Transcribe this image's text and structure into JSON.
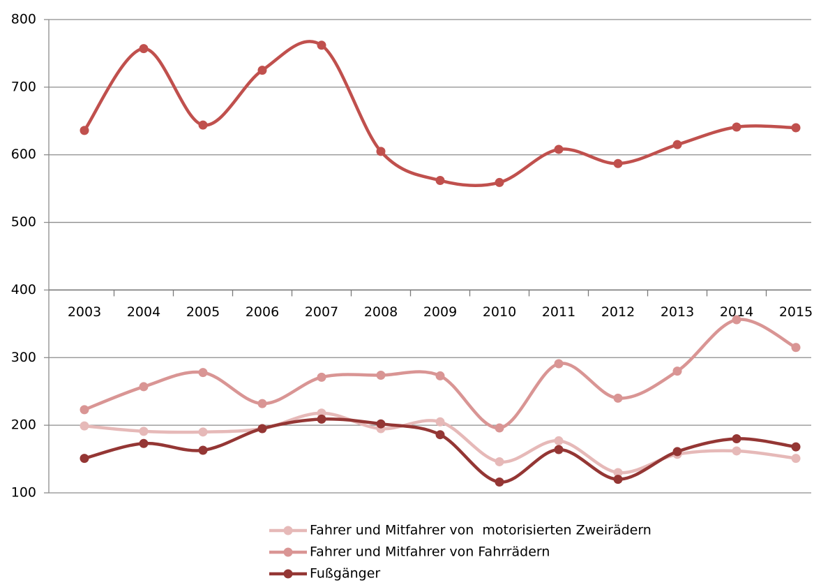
{
  "chart_data": {
    "type": "line",
    "categories": [
      "2003",
      "2004",
      "2005",
      "2006",
      "2007",
      "2008",
      "2009",
      "2010",
      "2011",
      "2012",
      "2013",
      "2014",
      "2015"
    ],
    "series": [
      {
        "color": "#c0504d",
        "values": [
          636,
          757,
          644,
          725,
          762,
          605,
          562,
          559,
          608,
          587,
          615,
          641,
          640
        ]
      },
      {
        "name": "Fahrer und Mitfahrer von  motorisierten Zweirädern",
        "color": "#e6b9b8",
        "values": [
          199,
          191,
          190,
          195,
          218,
          195,
          205,
          146,
          177,
          130,
          157,
          162,
          151
        ]
      },
      {
        "name": "Fahrer und Mitfahrer von Fahrrädern",
        "color": "#d99594",
        "values": [
          223,
          257,
          278,
          232,
          271,
          274,
          273,
          196,
          291,
          240,
          280,
          356,
          315
        ]
      },
      {
        "name": "Fußgänger",
        "color": "#943634",
        "values": [
          151,
          173,
          163,
          195,
          209,
          202,
          186,
          116,
          164,
          120,
          161,
          180,
          168
        ]
      }
    ],
    "ylim": [
      100,
      800
    ],
    "yticks": [
      100,
      200,
      300,
      400,
      500,
      600,
      700,
      800
    ],
    "x_axis_crosses": 400,
    "grid": true,
    "smooth": true,
    "legend": "bottom"
  }
}
